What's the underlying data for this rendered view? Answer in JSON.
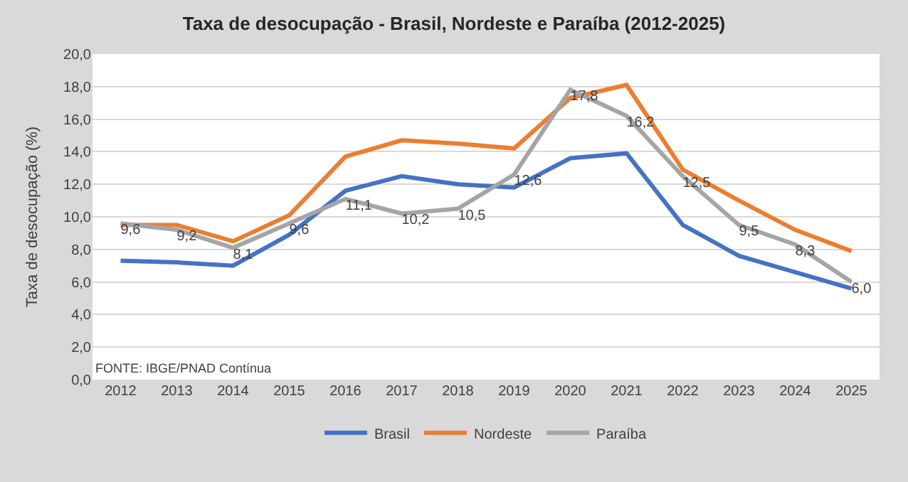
{
  "chart_data": {
    "type": "line",
    "title": "Taxa de desocupação - Brasil, Nordeste e Paraíba (2012-2025)",
    "ylabel": "Taxa de desocupação (%)",
    "categories": [
      "2012",
      "2013",
      "2014",
      "2015",
      "2016",
      "2017",
      "2018",
      "2019",
      "2020",
      "2021",
      "2022",
      "2023",
      "2024",
      "2025"
    ],
    "series": [
      {
        "name": "Brasil",
        "color": "#4472c4",
        "values": [
          7.3,
          7.2,
          7.0,
          8.9,
          11.6,
          12.5,
          12.0,
          11.8,
          13.6,
          13.9,
          9.5,
          7.6,
          6.6,
          5.6
        ]
      },
      {
        "name": "Nordeste",
        "color": "#ed7d31",
        "values": [
          9.5,
          9.5,
          8.5,
          10.1,
          13.7,
          14.7,
          14.5,
          14.2,
          17.3,
          18.1,
          12.9,
          11.0,
          9.2,
          7.9
        ]
      },
      {
        "name": "Paraíba",
        "color": "#a5a5a5",
        "values": [
          9.6,
          9.2,
          8.1,
          9.6,
          11.1,
          10.2,
          10.5,
          12.6,
          17.8,
          16.2,
          12.5,
          9.5,
          8.3,
          6.0
        ],
        "value_labels": [
          "9,6",
          "9,2",
          "8,1",
          "9,6",
          "11,1",
          "10,2",
          "10,5",
          "12,6",
          "17,8",
          "16,2",
          "12,5",
          "9,5",
          "8,3",
          "6,0"
        ]
      }
    ],
    "ylim": [
      0,
      20
    ],
    "yticks": [
      {
        "value": 0,
        "label": "0,0"
      },
      {
        "value": 2,
        "label": "2,0"
      },
      {
        "value": 4,
        "label": "4,0"
      },
      {
        "value": 6,
        "label": "6,0"
      },
      {
        "value": 8,
        "label": "8,0"
      },
      {
        "value": 10,
        "label": "10,0"
      },
      {
        "value": 12,
        "label": "12,0"
      },
      {
        "value": 14,
        "label": "14,0"
      },
      {
        "value": 16,
        "label": "16,0"
      },
      {
        "value": 18,
        "label": "18,0"
      },
      {
        "value": 20,
        "label": "20,0"
      }
    ],
    "grid": "y",
    "legend": "bottom",
    "marker": "none",
    "line_style": "solid",
    "annotations": [
      "FONTE: IBGE/PNAD Contínua"
    ]
  }
}
